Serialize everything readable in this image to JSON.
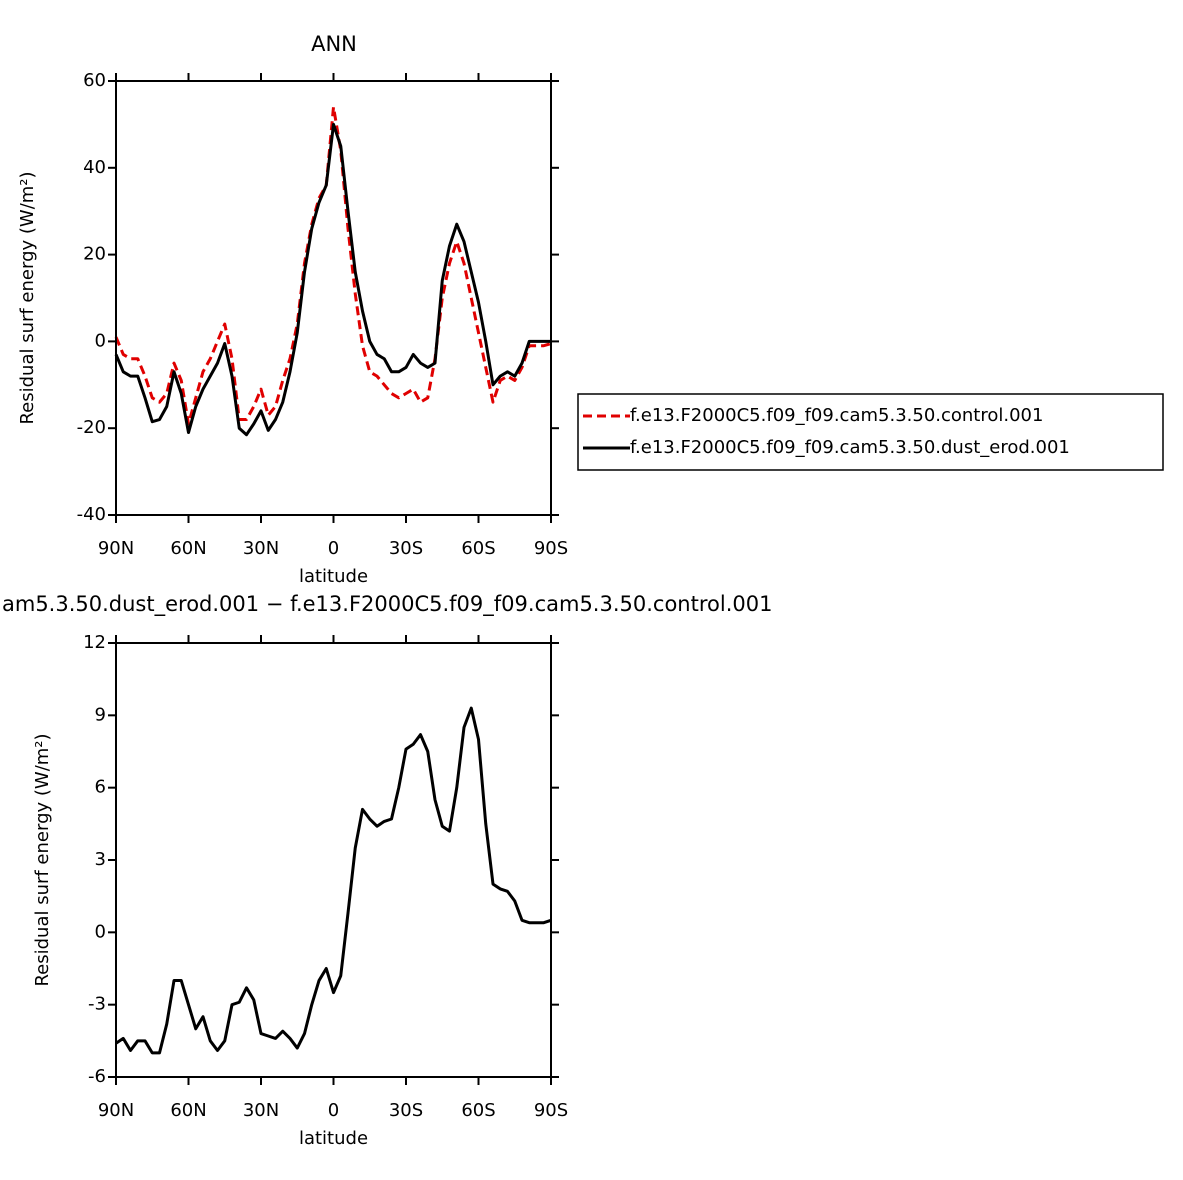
{
  "chart_data": [
    {
      "type": "line",
      "title": "ANN",
      "xlabel": "latitude",
      "ylabel": "Residual surf energy (W/m²)",
      "x": [
        90,
        87,
        84,
        81,
        78,
        75,
        72,
        69,
        66,
        63,
        60,
        57,
        54,
        51,
        48,
        45,
        42,
        39,
        36,
        33,
        30,
        27,
        24,
        21,
        18,
        15,
        12,
        9,
        6,
        3,
        0,
        -3,
        -6,
        -9,
        -12,
        -15,
        -18,
        -21,
        -24,
        -27,
        -30,
        -33,
        -36,
        -39,
        -42,
        -45,
        -48,
        -51,
        -54,
        -57,
        -60,
        -63,
        -66,
        -69,
        -72,
        -75,
        -78,
        -81,
        -84,
        -87,
        -90
      ],
      "xlim": [
        90,
        -90
      ],
      "xticks": [
        {
          "value": 90,
          "label": "90N"
        },
        {
          "value": 60,
          "label": "60N"
        },
        {
          "value": 30,
          "label": "30N"
        },
        0,
        {
          "value": -30,
          "label": "30S"
        },
        {
          "value": -60,
          "label": "60S"
        },
        {
          "value": -90,
          "label": "90S"
        }
      ],
      "ylim": [
        -40,
        60
      ],
      "yticks": [
        -40,
        -20,
        0,
        20,
        40,
        60
      ],
      "legend": "right",
      "series": [
        {
          "name": "f.e13.F2000C5.f09_f09.cam5.3.50.control.001",
          "color": "#e00000",
          "dash": "dashed",
          "values": [
            1,
            -3,
            -4,
            -4,
            -8,
            -13,
            -14,
            -12,
            -5,
            -9,
            -19,
            -13,
            -7,
            -4,
            0,
            4,
            -4,
            -18,
            -18,
            -15,
            -11,
            -17,
            -15,
            -9,
            -4,
            4,
            18,
            27,
            33,
            36,
            54,
            44,
            26,
            11,
            -1,
            -7,
            -8,
            -10,
            -12,
            -13,
            -12,
            -11,
            -14,
            -13,
            -4,
            10,
            18,
            23,
            18,
            10,
            2,
            -6,
            -14,
            -9,
            -8,
            -9,
            -6,
            -1,
            -1,
            -1,
            -0.5
          ]
        },
        {
          "name": "f.e13.F2000C5.f09_f09.cam5.3.50.dust_erod.001",
          "color": "#000000",
          "dash": "solid",
          "values": [
            -3,
            -7,
            -8,
            -8,
            -13,
            -18.5,
            -18,
            -15,
            -7,
            -12,
            -21,
            -15,
            -11,
            -8,
            -5,
            -0.5,
            -8,
            -20,
            -21.5,
            -19,
            -16,
            -20.5,
            -18,
            -14,
            -7,
            2,
            16,
            26,
            32,
            36,
            50,
            45,
            30,
            16,
            7,
            0,
            -3,
            -4,
            -7,
            -7,
            -6,
            -3,
            -5,
            -6,
            -5,
            14,
            22,
            27,
            23,
            16,
            9,
            0,
            -10,
            -8,
            -7,
            -8,
            -5,
            0,
            0,
            0,
            0
          ]
        }
      ]
    },
    {
      "type": "line",
      "title": "am5.3.50.dust_erod.001 − f.e13.F2000C5.f09_f09.cam5.3.50.control.001",
      "xlabel": "latitude",
      "ylabel": "Residual surf energy (W/m²)",
      "x": [
        90,
        87,
        84,
        81,
        78,
        75,
        72,
        69,
        66,
        63,
        60,
        57,
        54,
        51,
        48,
        45,
        42,
        39,
        36,
        33,
        30,
        27,
        24,
        21,
        18,
        15,
        12,
        9,
        6,
        3,
        0,
        -3,
        -6,
        -9,
        -12,
        -15,
        -18,
        -21,
        -24,
        -27,
        -30,
        -33,
        -36,
        -39,
        -42,
        -45,
        -48,
        -51,
        -54,
        -57,
        -60,
        -63,
        -66,
        -69,
        -72,
        -75,
        -78,
        -81,
        -84,
        -87,
        -90
      ],
      "xlim": [
        90,
        -90
      ],
      "xticks": [
        {
          "value": 90,
          "label": "90N"
        },
        {
          "value": 60,
          "label": "60N"
        },
        {
          "value": 30,
          "label": "30N"
        },
        0,
        {
          "value": -30,
          "label": "30S"
        },
        {
          "value": -60,
          "label": "60S"
        },
        {
          "value": -90,
          "label": "90S"
        }
      ],
      "ylim": [
        -6,
        12
      ],
      "yticks": [
        -6,
        -3,
        0,
        3,
        6,
        9,
        12
      ],
      "series": [
        {
          "color": "#000000",
          "dash": "solid",
          "values": [
            -4.6,
            -4.4,
            -4.9,
            -4.5,
            -4.5,
            -5.0,
            -5.0,
            -3.8,
            -2.0,
            -2.0,
            -3.0,
            -4.0,
            -3.5,
            -4.5,
            -4.9,
            -4.5,
            -3.0,
            -2.9,
            -2.3,
            -2.8,
            -4.2,
            -4.3,
            -4.4,
            -4.1,
            -4.4,
            -4.8,
            -4.2,
            -3.0,
            -2.0,
            -1.5,
            -2.5,
            -1.8,
            0.8,
            3.5,
            5.1,
            4.7,
            4.4,
            4.6,
            4.7,
            6.0,
            7.6,
            7.8,
            8.2,
            7.5,
            5.5,
            4.4,
            4.2,
            6.0,
            8.5,
            9.3,
            8.0,
            4.5,
            2.0,
            1.8,
            1.7,
            1.3,
            0.5,
            0.4,
            0.4,
            0.4,
            0.5
          ]
        }
      ]
    }
  ]
}
